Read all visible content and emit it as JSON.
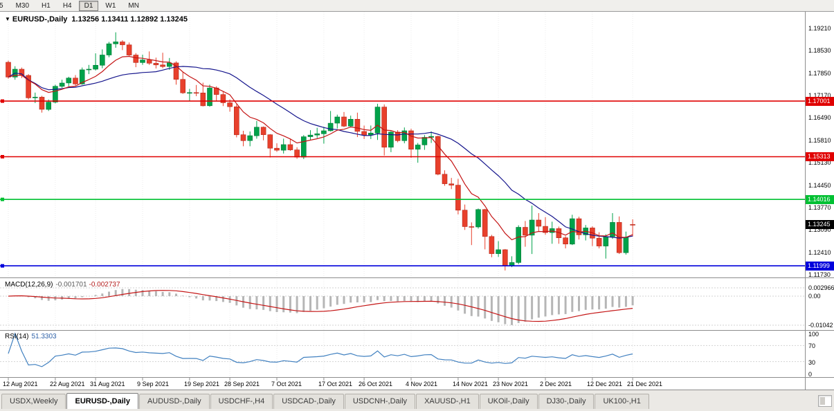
{
  "toolbar": {
    "timeframes": [
      {
        "label": "5",
        "active": false
      },
      {
        "label": "M30",
        "active": false
      },
      {
        "label": "H1",
        "active": false
      },
      {
        "label": "H4",
        "active": false
      },
      {
        "label": "D1",
        "active": true
      },
      {
        "label": "W1",
        "active": false
      },
      {
        "label": "MN",
        "active": false
      }
    ]
  },
  "tabs": {
    "items": [
      {
        "label": "USDX,Weekly",
        "active": false
      },
      {
        "label": "EURUSD-,Daily",
        "active": true
      },
      {
        "label": "AUDUSD-,Daily",
        "active": false
      },
      {
        "label": "USDCHF-,H4",
        "active": false
      },
      {
        "label": "USDCAD-,Daily",
        "active": false
      },
      {
        "label": "USDCNH-,Daily",
        "active": false
      },
      {
        "label": "XAUUSD-,H1",
        "active": false
      },
      {
        "label": "UKOil-,Daily",
        "active": false
      },
      {
        "label": "DJ30-,Daily",
        "active": false
      },
      {
        "label": "UK100-,H1",
        "active": false
      }
    ]
  },
  "chart_data": {
    "type": "candlestick",
    "symbol": "EURUSD-",
    "timeframe": "Daily",
    "title": "EURUSD-,Daily",
    "ohlc_text": "1.13256 1.13411 1.12892 1.13245",
    "open": "1.13256",
    "high": "1.13411",
    "low": "1.12892",
    "close": "1.13245",
    "colors": {
      "up": "#00a24a",
      "up_border": "#00California7a35",
      "down": "#e8402c",
      "down_border": "#b52a1c",
      "ma_fast": "#c41414",
      "ma_slow": "#14148c",
      "macd_hist": "#b6b6b6",
      "macd_signal": "#c41414",
      "rsi": "#4080c0",
      "grid": "#ebebeb",
      "hline_red": "#e00000",
      "hline_green": "#00c032",
      "hline_blue": "#0000dc",
      "price_tag": "#000000"
    },
    "price_axis": {
      "min": 1.11647,
      "max": 1.19713,
      "ticks": [
        "1.19210",
        "1.18530",
        "1.17850",
        "1.17170",
        "1.16490",
        "1.15810",
        "1.15130",
        "1.14450",
        "1.13770",
        "1.13090",
        "1.12410",
        "1.11730"
      ]
    },
    "hlines": [
      {
        "price": 1.17001,
        "label": "1.17001",
        "color": "#e00000"
      },
      {
        "price": 1.15313,
        "label": "1.15313",
        "color": "#e00000"
      },
      {
        "price": 1.14016,
        "label": "1.14016",
        "color": "#00c032"
      },
      {
        "price": 1.11999,
        "label": "1.11999",
        "color": "#0000dc"
      }
    ],
    "current_price": {
      "value": 1.13245,
      "label": "1.13245",
      "bg": "#000000"
    },
    "x_ticks": [
      {
        "label": "12 Aug 2021",
        "index": 0
      },
      {
        "label": "22 Aug 2021",
        "index": 7
      },
      {
        "label": "31 Aug 2021",
        "index": 13
      },
      {
        "label": "9 Sep 2021",
        "index": 20
      },
      {
        "label": "19 Sep 2021",
        "index": 27
      },
      {
        "label": "28 Sep 2021",
        "index": 33
      },
      {
        "label": "7 Oct 2021",
        "index": 40
      },
      {
        "label": "17 Oct 2021",
        "index": 47
      },
      {
        "label": "26 Oct 2021",
        "index": 53
      },
      {
        "label": "4 Nov 2021",
        "index": 60
      },
      {
        "label": "14 Nov 2021",
        "index": 67
      },
      {
        "label": "23 Nov 2021",
        "index": 73
      },
      {
        "label": "2 Dec 2021",
        "index": 80
      },
      {
        "label": "12 Dec 2021",
        "index": 87
      },
      {
        "label": "21 Dec 2021",
        "index": 93
      }
    ],
    "indicators": {
      "ma_fast": {
        "type": "EMA",
        "period": 8
      },
      "ma_slow": {
        "type": "SMA",
        "period": 20
      },
      "macd": {
        "name": "MACD(12,26,9)",
        "value_main": "-0.001701",
        "value_signal": "-0.002737",
        "fast": 12,
        "slow": 26,
        "signal": 9,
        "axis_ticks": [
          "0.002966",
          "0.00",
          "-0.01042"
        ]
      },
      "rsi": {
        "name": "RSI(14)",
        "value": "51.3303",
        "period": 14,
        "axis_ticks": [
          "100",
          "70",
          "30",
          "0"
        ],
        "levels": [
          70,
          30
        ]
      }
    },
    "candles": [
      [
        "2021-08-12",
        1.1818,
        1.1823,
        1.1768,
        1.1773
      ],
      [
        "2021-08-13",
        1.1773,
        1.1806,
        1.1765,
        1.1797
      ],
      [
        "2021-08-16",
        1.1797,
        1.1802,
        1.177,
        1.1778
      ],
      [
        "2021-08-17",
        1.1778,
        1.1782,
        1.1705,
        1.171
      ],
      [
        "2021-08-18",
        1.171,
        1.1726,
        1.1694,
        1.1712
      ],
      [
        "2021-08-19",
        1.1712,
        1.1716,
        1.1665,
        1.1675
      ],
      [
        "2021-08-20",
        1.1675,
        1.1705,
        1.167,
        1.1697
      ],
      [
        "2021-08-23",
        1.1697,
        1.175,
        1.1693,
        1.1745
      ],
      [
        "2021-08-24",
        1.1745,
        1.1765,
        1.174,
        1.1755
      ],
      [
        "2021-08-25",
        1.1755,
        1.1774,
        1.1745,
        1.177
      ],
      [
        "2021-08-26",
        1.177,
        1.1779,
        1.1747,
        1.1752
      ],
      [
        "2021-08-27",
        1.1752,
        1.1802,
        1.175,
        1.1795
      ],
      [
        "2021-08-30",
        1.1795,
        1.181,
        1.1782,
        1.1797
      ],
      [
        "2021-08-31",
        1.1797,
        1.1845,
        1.1793,
        1.1809
      ],
      [
        "2021-09-01",
        1.1809,
        1.1857,
        1.18,
        1.184
      ],
      [
        "2021-09-02",
        1.184,
        1.188,
        1.1833,
        1.1874
      ],
      [
        "2021-09-03",
        1.1874,
        1.1909,
        1.1862,
        1.188
      ],
      [
        "2021-09-06",
        1.188,
        1.1885,
        1.1855,
        1.1871
      ],
      [
        "2021-09-07",
        1.1871,
        1.1878,
        1.1837,
        1.184
      ],
      [
        "2021-09-08",
        1.184,
        1.1846,
        1.1803,
        1.1817
      ],
      [
        "2021-09-09",
        1.1817,
        1.1841,
        1.181,
        1.1825
      ],
      [
        "2021-09-10",
        1.1825,
        1.1851,
        1.181,
        1.1815
      ],
      [
        "2021-09-13",
        1.1815,
        1.1832,
        1.1799,
        1.181
      ],
      [
        "2021-09-14",
        1.181,
        1.1847,
        1.18,
        1.1805
      ],
      [
        "2021-09-15",
        1.1805,
        1.1831,
        1.1795,
        1.1816
      ],
      [
        "2021-09-16",
        1.1816,
        1.1821,
        1.175,
        1.1766
      ],
      [
        "2021-09-17",
        1.1766,
        1.1788,
        1.1722,
        1.1725
      ],
      [
        "2021-09-20",
        1.1725,
        1.1737,
        1.17,
        1.1726
      ],
      [
        "2021-09-21",
        1.1726,
        1.1749,
        1.1715,
        1.1725
      ],
      [
        "2021-09-22",
        1.1725,
        1.1756,
        1.1684,
        1.1686
      ],
      [
        "2021-09-23",
        1.1686,
        1.175,
        1.1683,
        1.174
      ],
      [
        "2021-09-24",
        1.174,
        1.1745,
        1.1701,
        1.172
      ],
      [
        "2021-09-27",
        1.172,
        1.173,
        1.1685,
        1.1695
      ],
      [
        "2021-09-28",
        1.1695,
        1.1705,
        1.1668,
        1.1683
      ],
      [
        "2021-09-29",
        1.1683,
        1.169,
        1.159,
        1.1598
      ],
      [
        "2021-09-30",
        1.1598,
        1.161,
        1.1563,
        1.158
      ],
      [
        "2021-10-01",
        1.158,
        1.1608,
        1.1563,
        1.1595
      ],
      [
        "2021-10-04",
        1.1595,
        1.164,
        1.1586,
        1.1621
      ],
      [
        "2021-10-05",
        1.1621,
        1.1623,
        1.1581,
        1.1598
      ],
      [
        "2021-10-06",
        1.1598,
        1.16,
        1.1529,
        1.1557
      ],
      [
        "2021-10-07",
        1.1557,
        1.1572,
        1.1546,
        1.1551
      ],
      [
        "2021-10-08",
        1.1551,
        1.1586,
        1.1541,
        1.1568
      ],
      [
        "2021-10-11",
        1.1568,
        1.1586,
        1.1549,
        1.1552
      ],
      [
        "2021-10-12",
        1.1552,
        1.156,
        1.1525,
        1.153
      ],
      [
        "2021-10-13",
        1.153,
        1.1597,
        1.1524,
        1.1592
      ],
      [
        "2021-10-14",
        1.1592,
        1.1612,
        1.1582,
        1.1597
      ],
      [
        "2021-10-15",
        1.1597,
        1.1619,
        1.1588,
        1.1601
      ],
      [
        "2021-10-18",
        1.1601,
        1.1622,
        1.1571,
        1.161
      ],
      [
        "2021-10-19",
        1.161,
        1.167,
        1.1608,
        1.1633
      ],
      [
        "2021-10-20",
        1.1633,
        1.1659,
        1.1617,
        1.1652
      ],
      [
        "2021-10-21",
        1.1652,
        1.1667,
        1.1621,
        1.1624
      ],
      [
        "2021-10-22",
        1.1624,
        1.1656,
        1.162,
        1.1645
      ],
      [
        "2021-10-25",
        1.1645,
        1.1665,
        1.1591,
        1.1608
      ],
      [
        "2021-10-26",
        1.1608,
        1.1626,
        1.1585,
        1.1597
      ],
      [
        "2021-10-27",
        1.1597,
        1.1626,
        1.1585,
        1.1603
      ],
      [
        "2021-10-28",
        1.1603,
        1.1692,
        1.1582,
        1.1682
      ],
      [
        "2021-10-29",
        1.1682,
        1.169,
        1.1535,
        1.156
      ],
      [
        "2021-11-01",
        1.156,
        1.1609,
        1.1545,
        1.1606
      ],
      [
        "2021-11-02",
        1.1606,
        1.1612,
        1.1575,
        1.158
      ],
      [
        "2021-11-03",
        1.158,
        1.162,
        1.1572,
        1.161
      ],
      [
        "2021-11-04",
        1.161,
        1.1616,
        1.1528,
        1.1554
      ],
      [
        "2021-11-05",
        1.1554,
        1.1573,
        1.1513,
        1.1567
      ],
      [
        "2021-11-08",
        1.1567,
        1.1597,
        1.1552,
        1.159
      ],
      [
        "2021-11-09",
        1.159,
        1.1608,
        1.1573,
        1.1593
      ],
      [
        "2021-11-10",
        1.1593,
        1.1595,
        1.1475,
        1.1478
      ],
      [
        "2021-11-11",
        1.1478,
        1.149,
        1.1443,
        1.1449
      ],
      [
        "2021-11-12",
        1.1449,
        1.1467,
        1.1433,
        1.1445
      ],
      [
        "2021-11-15",
        1.1445,
        1.1464,
        1.1356,
        1.1369
      ],
      [
        "2021-11-16",
        1.1369,
        1.1386,
        1.1309,
        1.1319
      ],
      [
        "2021-11-17",
        1.1319,
        1.1332,
        1.1263,
        1.1318
      ],
      [
        "2021-11-18",
        1.1318,
        1.1374,
        1.1313,
        1.1371
      ],
      [
        "2021-11-19",
        1.1371,
        1.1373,
        1.125,
        1.1289
      ],
      [
        "2021-11-22",
        1.1289,
        1.1294,
        1.1226,
        1.1237
      ],
      [
        "2021-11-23",
        1.1237,
        1.1275,
        1.1227,
        1.1249
      ],
      [
        "2021-11-24",
        1.1249,
        1.1251,
        1.1186,
        1.1199
      ],
      [
        "2021-11-25",
        1.1199,
        1.1229,
        1.1196,
        1.121
      ],
      [
        "2021-11-26",
        1.121,
        1.1323,
        1.1205,
        1.1317
      ],
      [
        "2021-11-29",
        1.1317,
        1.1336,
        1.1258,
        1.1293
      ],
      [
        "2021-11-30",
        1.1293,
        1.1383,
        1.1236,
        1.1339
      ],
      [
        "2021-12-01",
        1.1339,
        1.136,
        1.1305,
        1.132
      ],
      [
        "2021-12-02",
        1.132,
        1.1348,
        1.1294,
        1.1301
      ],
      [
        "2021-12-03",
        1.1301,
        1.1334,
        1.1267,
        1.1313
      ],
      [
        "2021-12-06",
        1.1313,
        1.1319,
        1.1267,
        1.1285
      ],
      [
        "2021-12-07",
        1.1285,
        1.129,
        1.1253,
        1.1266
      ],
      [
        "2021-12-08",
        1.1266,
        1.1355,
        1.1263,
        1.1343
      ],
      [
        "2021-12-09",
        1.1343,
        1.1349,
        1.128,
        1.1294
      ],
      [
        "2021-12-10",
        1.1294,
        1.1324,
        1.1277,
        1.1315
      ],
      [
        "2021-12-13",
        1.1315,
        1.132,
        1.126,
        1.1284
      ],
      [
        "2021-12-14",
        1.1284,
        1.1302,
        1.1253,
        1.126
      ],
      [
        "2021-12-15",
        1.126,
        1.1296,
        1.1222,
        1.1289
      ],
      [
        "2021-12-16",
        1.1289,
        1.136,
        1.1282,
        1.1332
      ],
      [
        "2021-12-17",
        1.1332,
        1.135,
        1.1236,
        1.124
      ],
      [
        "2021-12-20",
        1.124,
        1.1304,
        1.1234,
        1.1286
      ],
      [
        "2021-12-21",
        1.13256,
        1.13411,
        1.12892,
        1.13245
      ]
    ]
  }
}
